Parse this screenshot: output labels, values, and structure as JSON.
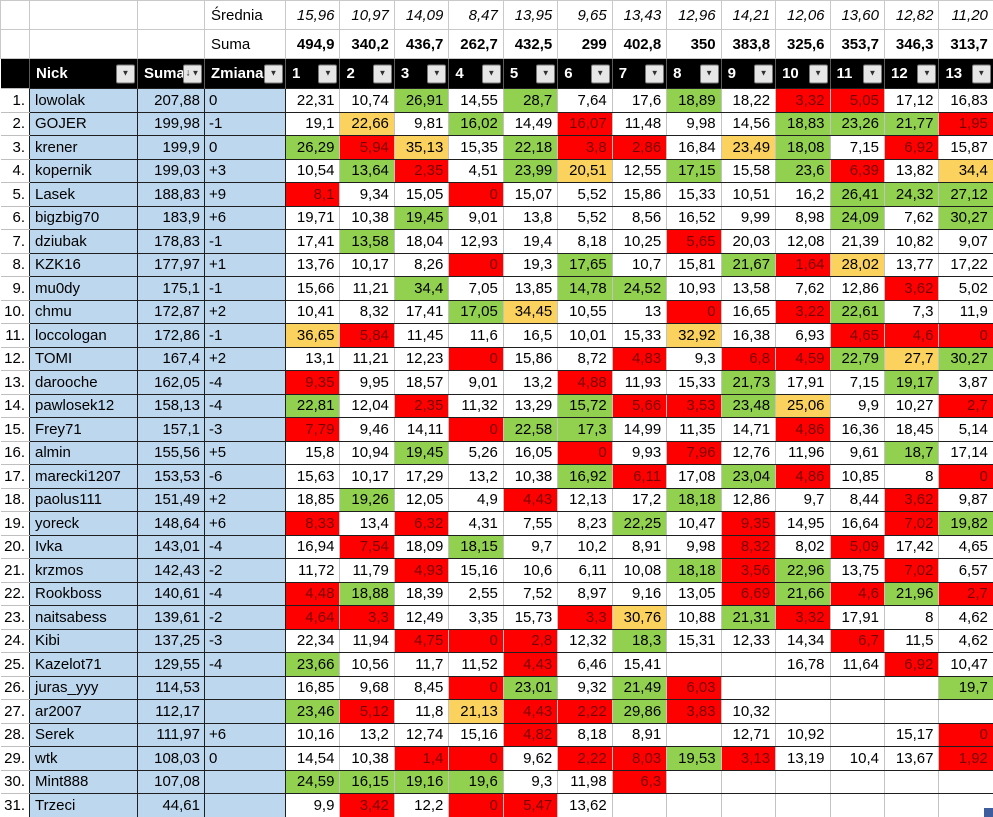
{
  "summary": {
    "avg_label": "Średnia",
    "sum_label": "Suma",
    "averages": [
      "15,96",
      "10,97",
      "14,09",
      "8,47",
      "13,95",
      "9,65",
      "13,43",
      "12,96",
      "14,21",
      "12,06",
      "13,60",
      "12,82",
      "11,20"
    ],
    "sums": [
      "494,9",
      "340,2",
      "436,7",
      "262,7",
      "432,5",
      "299",
      "402,8",
      "350",
      "383,8",
      "325,6",
      "353,7",
      "346,3",
      "313,7"
    ]
  },
  "header": {
    "nick": "Nick",
    "suma": "Suma",
    "zmiana": "Zmiana",
    "rounds": [
      "1",
      "2",
      "3",
      "4",
      "5",
      "6",
      "7",
      "8",
      "9",
      "10",
      "11",
      "12",
      "13"
    ],
    "filter_icon": "▼",
    "sort_icon": "↓"
  },
  "colors": {
    "best_round": "#FBD25E",
    "good_score": "#92D050",
    "bad_score": "#FF0000",
    "name_bg": "#BDD7EE",
    "header_bg": "#000000",
    "red_text": "#790000"
  },
  "rows": [
    {
      "rank": "1.",
      "nick": "lowolak",
      "suma": "207,88",
      "zmiana": "0",
      "scores": [
        "22,31",
        "10,74",
        "26,91",
        "14,55",
        "28,7",
        "7,64",
        "17,6",
        "18,89",
        "18,22",
        "3,32",
        "5,05",
        "17,12",
        "16,83"
      ],
      "colors": [
        "w",
        "w",
        "g",
        "w",
        "g",
        "w",
        "w",
        "g",
        "w",
        "r",
        "r",
        "w",
        "w"
      ]
    },
    {
      "rank": "2.",
      "nick": "GOJER",
      "suma": "199,98",
      "zmiana": "-1",
      "scores": [
        "19,1",
        "22,66",
        "9,81",
        "16,02",
        "14,49",
        "16,07",
        "11,48",
        "9,98",
        "14,56",
        "18,83",
        "23,26",
        "21,77",
        "1,95"
      ],
      "colors": [
        "w",
        "y",
        "w",
        "g",
        "w",
        "r",
        "w",
        "w",
        "w",
        "g",
        "g",
        "g",
        "r"
      ]
    },
    {
      "rank": "3.",
      "nick": "krener",
      "suma": "199,9",
      "zmiana": "0",
      "scores": [
        "26,29",
        "5,94",
        "35,13",
        "15,35",
        "22,18",
        "3,8",
        "2,86",
        "16,84",
        "23,49",
        "18,08",
        "7,15",
        "6,92",
        "15,87"
      ],
      "colors": [
        "g",
        "r",
        "y",
        "w",
        "g",
        "r",
        "r",
        "w",
        "y",
        "g",
        "w",
        "r",
        "w"
      ]
    },
    {
      "rank": "4.",
      "nick": "kopernik",
      "suma": "199,03",
      "zmiana": "+3",
      "scores": [
        "10,54",
        "13,64",
        "2,35",
        "4,51",
        "23,99",
        "20,51",
        "12,55",
        "17,15",
        "15,58",
        "23,6",
        "6,39",
        "13,82",
        "34,4"
      ],
      "colors": [
        "w",
        "g",
        "r",
        "w",
        "g",
        "y",
        "w",
        "g",
        "w",
        "g",
        "r",
        "w",
        "y"
      ]
    },
    {
      "rank": "5.",
      "nick": "Lasek",
      "suma": "188,83",
      "zmiana": "+9",
      "scores": [
        "8,1",
        "9,34",
        "15,05",
        "0",
        "15,07",
        "5,52",
        "15,86",
        "15,33",
        "10,51",
        "16,2",
        "26,41",
        "24,32",
        "27,12"
      ],
      "colors": [
        "r",
        "w",
        "w",
        "r",
        "w",
        "w",
        "w",
        "w",
        "w",
        "w",
        "g",
        "g",
        "g"
      ]
    },
    {
      "rank": "6.",
      "nick": "bigzbig70",
      "suma": "183,9",
      "zmiana": "+6",
      "scores": [
        "19,71",
        "10,38",
        "19,45",
        "9,01",
        "13,8",
        "5,52",
        "8,56",
        "16,52",
        "9,99",
        "8,98",
        "24,09",
        "7,62",
        "30,27"
      ],
      "colors": [
        "w",
        "w",
        "g",
        "w",
        "w",
        "w",
        "w",
        "w",
        "w",
        "w",
        "g",
        "w",
        "g"
      ]
    },
    {
      "rank": "7.",
      "nick": "dziubak",
      "suma": "178,83",
      "zmiana": "-1",
      "scores": [
        "17,41",
        "13,58",
        "18,04",
        "12,93",
        "19,4",
        "8,18",
        "10,25",
        "5,65",
        "20,03",
        "12,08",
        "21,39",
        "10,82",
        "9,07"
      ],
      "colors": [
        "w",
        "g",
        "w",
        "w",
        "w",
        "w",
        "w",
        "r",
        "w",
        "w",
        "w",
        "w",
        "w"
      ]
    },
    {
      "rank": "8.",
      "nick": "KZK16",
      "suma": "177,97",
      "zmiana": "+1",
      "scores": [
        "13,76",
        "10,17",
        "8,26",
        "0",
        "19,3",
        "17,65",
        "10,7",
        "15,81",
        "21,67",
        "1,64",
        "28,02",
        "13,77",
        "17,22"
      ],
      "colors": [
        "w",
        "w",
        "w",
        "r",
        "w",
        "g",
        "w",
        "w",
        "g",
        "r",
        "y",
        "w",
        "w"
      ]
    },
    {
      "rank": "9.",
      "nick": "mu0dy",
      "suma": "175,1",
      "zmiana": "-1",
      "scores": [
        "15,66",
        "11,21",
        "34,4",
        "7,05",
        "13,85",
        "14,78",
        "24,52",
        "10,93",
        "13,58",
        "7,62",
        "12,86",
        "3,62",
        "5,02"
      ],
      "colors": [
        "w",
        "w",
        "g",
        "w",
        "w",
        "g",
        "g",
        "w",
        "w",
        "w",
        "w",
        "r",
        "w"
      ]
    },
    {
      "rank": "10.",
      "nick": "chmu",
      "suma": "172,87",
      "zmiana": "+2",
      "scores": [
        "10,41",
        "8,32",
        "17,41",
        "17,05",
        "34,45",
        "10,55",
        "13",
        "0",
        "16,65",
        "3,22",
        "22,61",
        "7,3",
        "11,9"
      ],
      "colors": [
        "w",
        "w",
        "w",
        "g",
        "y",
        "w",
        "w",
        "r",
        "w",
        "r",
        "g",
        "w",
        "w"
      ]
    },
    {
      "rank": "11.",
      "nick": "loccologan",
      "suma": "172,86",
      "zmiana": "-1",
      "scores": [
        "36,65",
        "5,84",
        "11,45",
        "11,6",
        "16,5",
        "10,01",
        "15,33",
        "32,92",
        "16,38",
        "6,93",
        "4,65",
        "4,6",
        "0"
      ],
      "colors": [
        "y",
        "r",
        "w",
        "w",
        "w",
        "w",
        "w",
        "y",
        "w",
        "w",
        "r",
        "r",
        "r"
      ]
    },
    {
      "rank": "12.",
      "nick": "TOMI",
      "suma": "167,4",
      "zmiana": "+2",
      "scores": [
        "13,1",
        "11,21",
        "12,23",
        "0",
        "15,86",
        "8,72",
        "4,83",
        "9,3",
        "6,8",
        "4,59",
        "22,79",
        "27,7",
        "30,27"
      ],
      "colors": [
        "w",
        "w",
        "w",
        "r",
        "w",
        "w",
        "r",
        "w",
        "r",
        "r",
        "g",
        "y",
        "g"
      ]
    },
    {
      "rank": "13.",
      "nick": "darooche",
      "suma": "162,05",
      "zmiana": "-4",
      "scores": [
        "9,35",
        "9,95",
        "18,57",
        "9,01",
        "13,2",
        "4,88",
        "11,93",
        "15,33",
        "21,73",
        "17,91",
        "7,15",
        "19,17",
        "3,87"
      ],
      "colors": [
        "r",
        "w",
        "w",
        "w",
        "w",
        "r",
        "w",
        "w",
        "g",
        "w",
        "w",
        "g",
        "w"
      ]
    },
    {
      "rank": "14.",
      "nick": "pawlosek12",
      "suma": "158,13",
      "zmiana": "-4",
      "scores": [
        "22,81",
        "12,04",
        "2,35",
        "11,32",
        "13,29",
        "15,72",
        "5,66",
        "3,53",
        "23,48",
        "25,06",
        "9,9",
        "10,27",
        "2,7"
      ],
      "colors": [
        "g",
        "w",
        "r",
        "w",
        "w",
        "g",
        "r",
        "r",
        "g",
        "y",
        "w",
        "w",
        "r"
      ]
    },
    {
      "rank": "15.",
      "nick": "Frey71",
      "suma": "157,1",
      "zmiana": "-3",
      "scores": [
        "7,79",
        "9,46",
        "14,11",
        "0",
        "22,58",
        "17,3",
        "14,99",
        "11,35",
        "14,71",
        "4,86",
        "16,36",
        "18,45",
        "5,14"
      ],
      "colors": [
        "r",
        "w",
        "w",
        "r",
        "g",
        "g",
        "w",
        "w",
        "w",
        "r",
        "w",
        "w",
        "w"
      ]
    },
    {
      "rank": "16.",
      "nick": "almin",
      "suma": "155,56",
      "zmiana": "+5",
      "scores": [
        "15,8",
        "10,94",
        "19,45",
        "5,26",
        "16,05",
        "0",
        "9,93",
        "7,96",
        "12,76",
        "11,96",
        "9,61",
        "18,7",
        "17,14"
      ],
      "colors": [
        "w",
        "w",
        "g",
        "w",
        "w",
        "r",
        "w",
        "r",
        "w",
        "w",
        "w",
        "g",
        "w"
      ]
    },
    {
      "rank": "17.",
      "nick": "marecki1207",
      "suma": "153,53",
      "zmiana": "-6",
      "scores": [
        "15,63",
        "10,17",
        "17,29",
        "13,2",
        "10,38",
        "16,92",
        "6,11",
        "17,08",
        "23,04",
        "4,86",
        "10,85",
        "8",
        "0"
      ],
      "colors": [
        "w",
        "w",
        "w",
        "w",
        "w",
        "g",
        "r",
        "w",
        "g",
        "r",
        "w",
        "w",
        "r"
      ]
    },
    {
      "rank": "18.",
      "nick": "paolus111",
      "suma": "151,49",
      "zmiana": "+2",
      "scores": [
        "18,85",
        "19,26",
        "12,05",
        "4,9",
        "4,43",
        "12,13",
        "17,2",
        "18,18",
        "12,86",
        "9,7",
        "8,44",
        "3,62",
        "9,87"
      ],
      "colors": [
        "w",
        "g",
        "w",
        "w",
        "r",
        "w",
        "w",
        "g",
        "w",
        "w",
        "w",
        "r",
        "w"
      ]
    },
    {
      "rank": "19.",
      "nick": "yoreck",
      "suma": "148,64",
      "zmiana": "+6",
      "scores": [
        "8,33",
        "13,4",
        "6,32",
        "4,31",
        "7,55",
        "8,23",
        "22,25",
        "10,47",
        "9,35",
        "14,95",
        "16,64",
        "7,02",
        "19,82"
      ],
      "colors": [
        "r",
        "w",
        "r",
        "w",
        "w",
        "w",
        "g",
        "w",
        "r",
        "w",
        "w",
        "r",
        "g"
      ]
    },
    {
      "rank": "20.",
      "nick": "Ivka",
      "suma": "143,01",
      "zmiana": "-4",
      "scores": [
        "16,94",
        "7,54",
        "18,09",
        "18,15",
        "9,7",
        "10,2",
        "8,91",
        "9,98",
        "8,32",
        "8,02",
        "5,09",
        "17,42",
        "4,65"
      ],
      "colors": [
        "w",
        "r",
        "w",
        "g",
        "w",
        "w",
        "w",
        "w",
        "r",
        "w",
        "r",
        "w",
        "w"
      ]
    },
    {
      "rank": "21.",
      "nick": "krzmos",
      "suma": "142,43",
      "zmiana": "-2",
      "scores": [
        "11,72",
        "11,79",
        "4,93",
        "15,16",
        "10,6",
        "6,11",
        "10,08",
        "18,18",
        "3,56",
        "22,96",
        "13,75",
        "7,02",
        "6,57"
      ],
      "colors": [
        "w",
        "w",
        "r",
        "w",
        "w",
        "w",
        "w",
        "g",
        "r",
        "g",
        "w",
        "r",
        "w"
      ]
    },
    {
      "rank": "22.",
      "nick": "Rookboss",
      "suma": "140,61",
      "zmiana": "-4",
      "scores": [
        "4,48",
        "18,88",
        "18,39",
        "2,55",
        "7,52",
        "8,97",
        "9,16",
        "13,05",
        "6,69",
        "21,66",
        "4,6",
        "21,96",
        "2,7"
      ],
      "colors": [
        "r",
        "g",
        "w",
        "w",
        "w",
        "w",
        "w",
        "w",
        "r",
        "g",
        "r",
        "g",
        "r"
      ]
    },
    {
      "rank": "23.",
      "nick": "naitsabess",
      "suma": "139,61",
      "zmiana": "-2",
      "scores": [
        "4,64",
        "3,3",
        "12,49",
        "3,35",
        "15,73",
        "3,3",
        "30,76",
        "10,88",
        "21,31",
        "3,32",
        "17,91",
        "8",
        "4,62"
      ],
      "colors": [
        "r",
        "r",
        "w",
        "w",
        "w",
        "r",
        "y",
        "w",
        "g",
        "r",
        "w",
        "w",
        "w"
      ]
    },
    {
      "rank": "24.",
      "nick": "Kibi",
      "suma": "137,25",
      "zmiana": "-3",
      "scores": [
        "22,34",
        "11,94",
        "4,75",
        "0",
        "2,8",
        "12,32",
        "18,3",
        "15,31",
        "12,33",
        "14,34",
        "6,7",
        "11,5",
        "4,62"
      ],
      "colors": [
        "w",
        "w",
        "r",
        "r",
        "r",
        "w",
        "g",
        "w",
        "w",
        "w",
        "r",
        "w",
        "w"
      ]
    },
    {
      "rank": "25.",
      "nick": "Kazelot71",
      "suma": "129,55",
      "zmiana": "-4",
      "scores": [
        "23,66",
        "10,56",
        "11,7",
        "11,52",
        "4,43",
        "6,46",
        "15,41",
        "",
        "",
        "16,78",
        "11,64",
        "6,92",
        "10,47"
      ],
      "colors": [
        "g",
        "w",
        "w",
        "w",
        "r",
        "w",
        "w",
        "w",
        "w",
        "w",
        "w",
        "r",
        "w"
      ]
    },
    {
      "rank": "26.",
      "nick": "juras_yyy",
      "suma": "114,53",
      "zmiana": "",
      "scores": [
        "16,85",
        "9,68",
        "8,45",
        "0",
        "23,01",
        "9,32",
        "21,49",
        "6,03",
        "",
        "",
        "",
        "",
        "19,7"
      ],
      "colors": [
        "w",
        "w",
        "w",
        "r",
        "g",
        "w",
        "g",
        "r",
        "w",
        "w",
        "w",
        "w",
        "g"
      ]
    },
    {
      "rank": "27.",
      "nick": "ar2007",
      "suma": "112,17",
      "zmiana": "",
      "scores": [
        "23,46",
        "5,12",
        "11,8",
        "21,13",
        "4,43",
        "2,22",
        "29,86",
        "3,83",
        "10,32",
        "",
        "",
        "",
        ""
      ],
      "colors": [
        "g",
        "r",
        "w",
        "y",
        "r",
        "r",
        "g",
        "r",
        "w",
        "w",
        "w",
        "w",
        "w"
      ]
    },
    {
      "rank": "28.",
      "nick": "Serek",
      "suma": "111,97",
      "zmiana": "+6",
      "scores": [
        "10,16",
        "13,2",
        "12,74",
        "15,16",
        "4,82",
        "8,18",
        "8,91",
        "",
        "12,71",
        "10,92",
        "",
        "15,17",
        "0"
      ],
      "colors": [
        "w",
        "w",
        "w",
        "w",
        "r",
        "w",
        "w",
        "w",
        "w",
        "w",
        "w",
        "w",
        "r"
      ]
    },
    {
      "rank": "29.",
      "nick": "wtk",
      "suma": "108,03",
      "zmiana": "0",
      "scores": [
        "14,54",
        "10,38",
        "1,4",
        "0",
        "9,62",
        "2,22",
        "8,03",
        "19,53",
        "3,13",
        "13,19",
        "10,4",
        "13,67",
        "1,92"
      ],
      "colors": [
        "w",
        "w",
        "r",
        "r",
        "w",
        "r",
        "r",
        "g",
        "r",
        "w",
        "w",
        "w",
        "r"
      ]
    },
    {
      "rank": "30.",
      "nick": "Mint888",
      "suma": "107,08",
      "zmiana": "",
      "scores": [
        "24,59",
        "16,15",
        "19,16",
        "19,6",
        "9,3",
        "11,98",
        "6,3",
        "",
        "",
        "",
        "",
        "",
        ""
      ],
      "colors": [
        "g",
        "g",
        "g",
        "g",
        "w",
        "w",
        "r",
        "w",
        "w",
        "w",
        "w",
        "w",
        "w"
      ]
    },
    {
      "rank": "31.",
      "nick": "Trzeci",
      "suma": "44,61",
      "zmiana": "",
      "scores": [
        "9,9",
        "3,42",
        "12,2",
        "0",
        "5,47",
        "13,62",
        "",
        "",
        "",
        "",
        "",
        "",
        ""
      ],
      "colors": [
        "w",
        "r",
        "w",
        "r",
        "r",
        "w",
        "w",
        "w",
        "w",
        "w",
        "w",
        "w",
        "w"
      ]
    }
  ]
}
